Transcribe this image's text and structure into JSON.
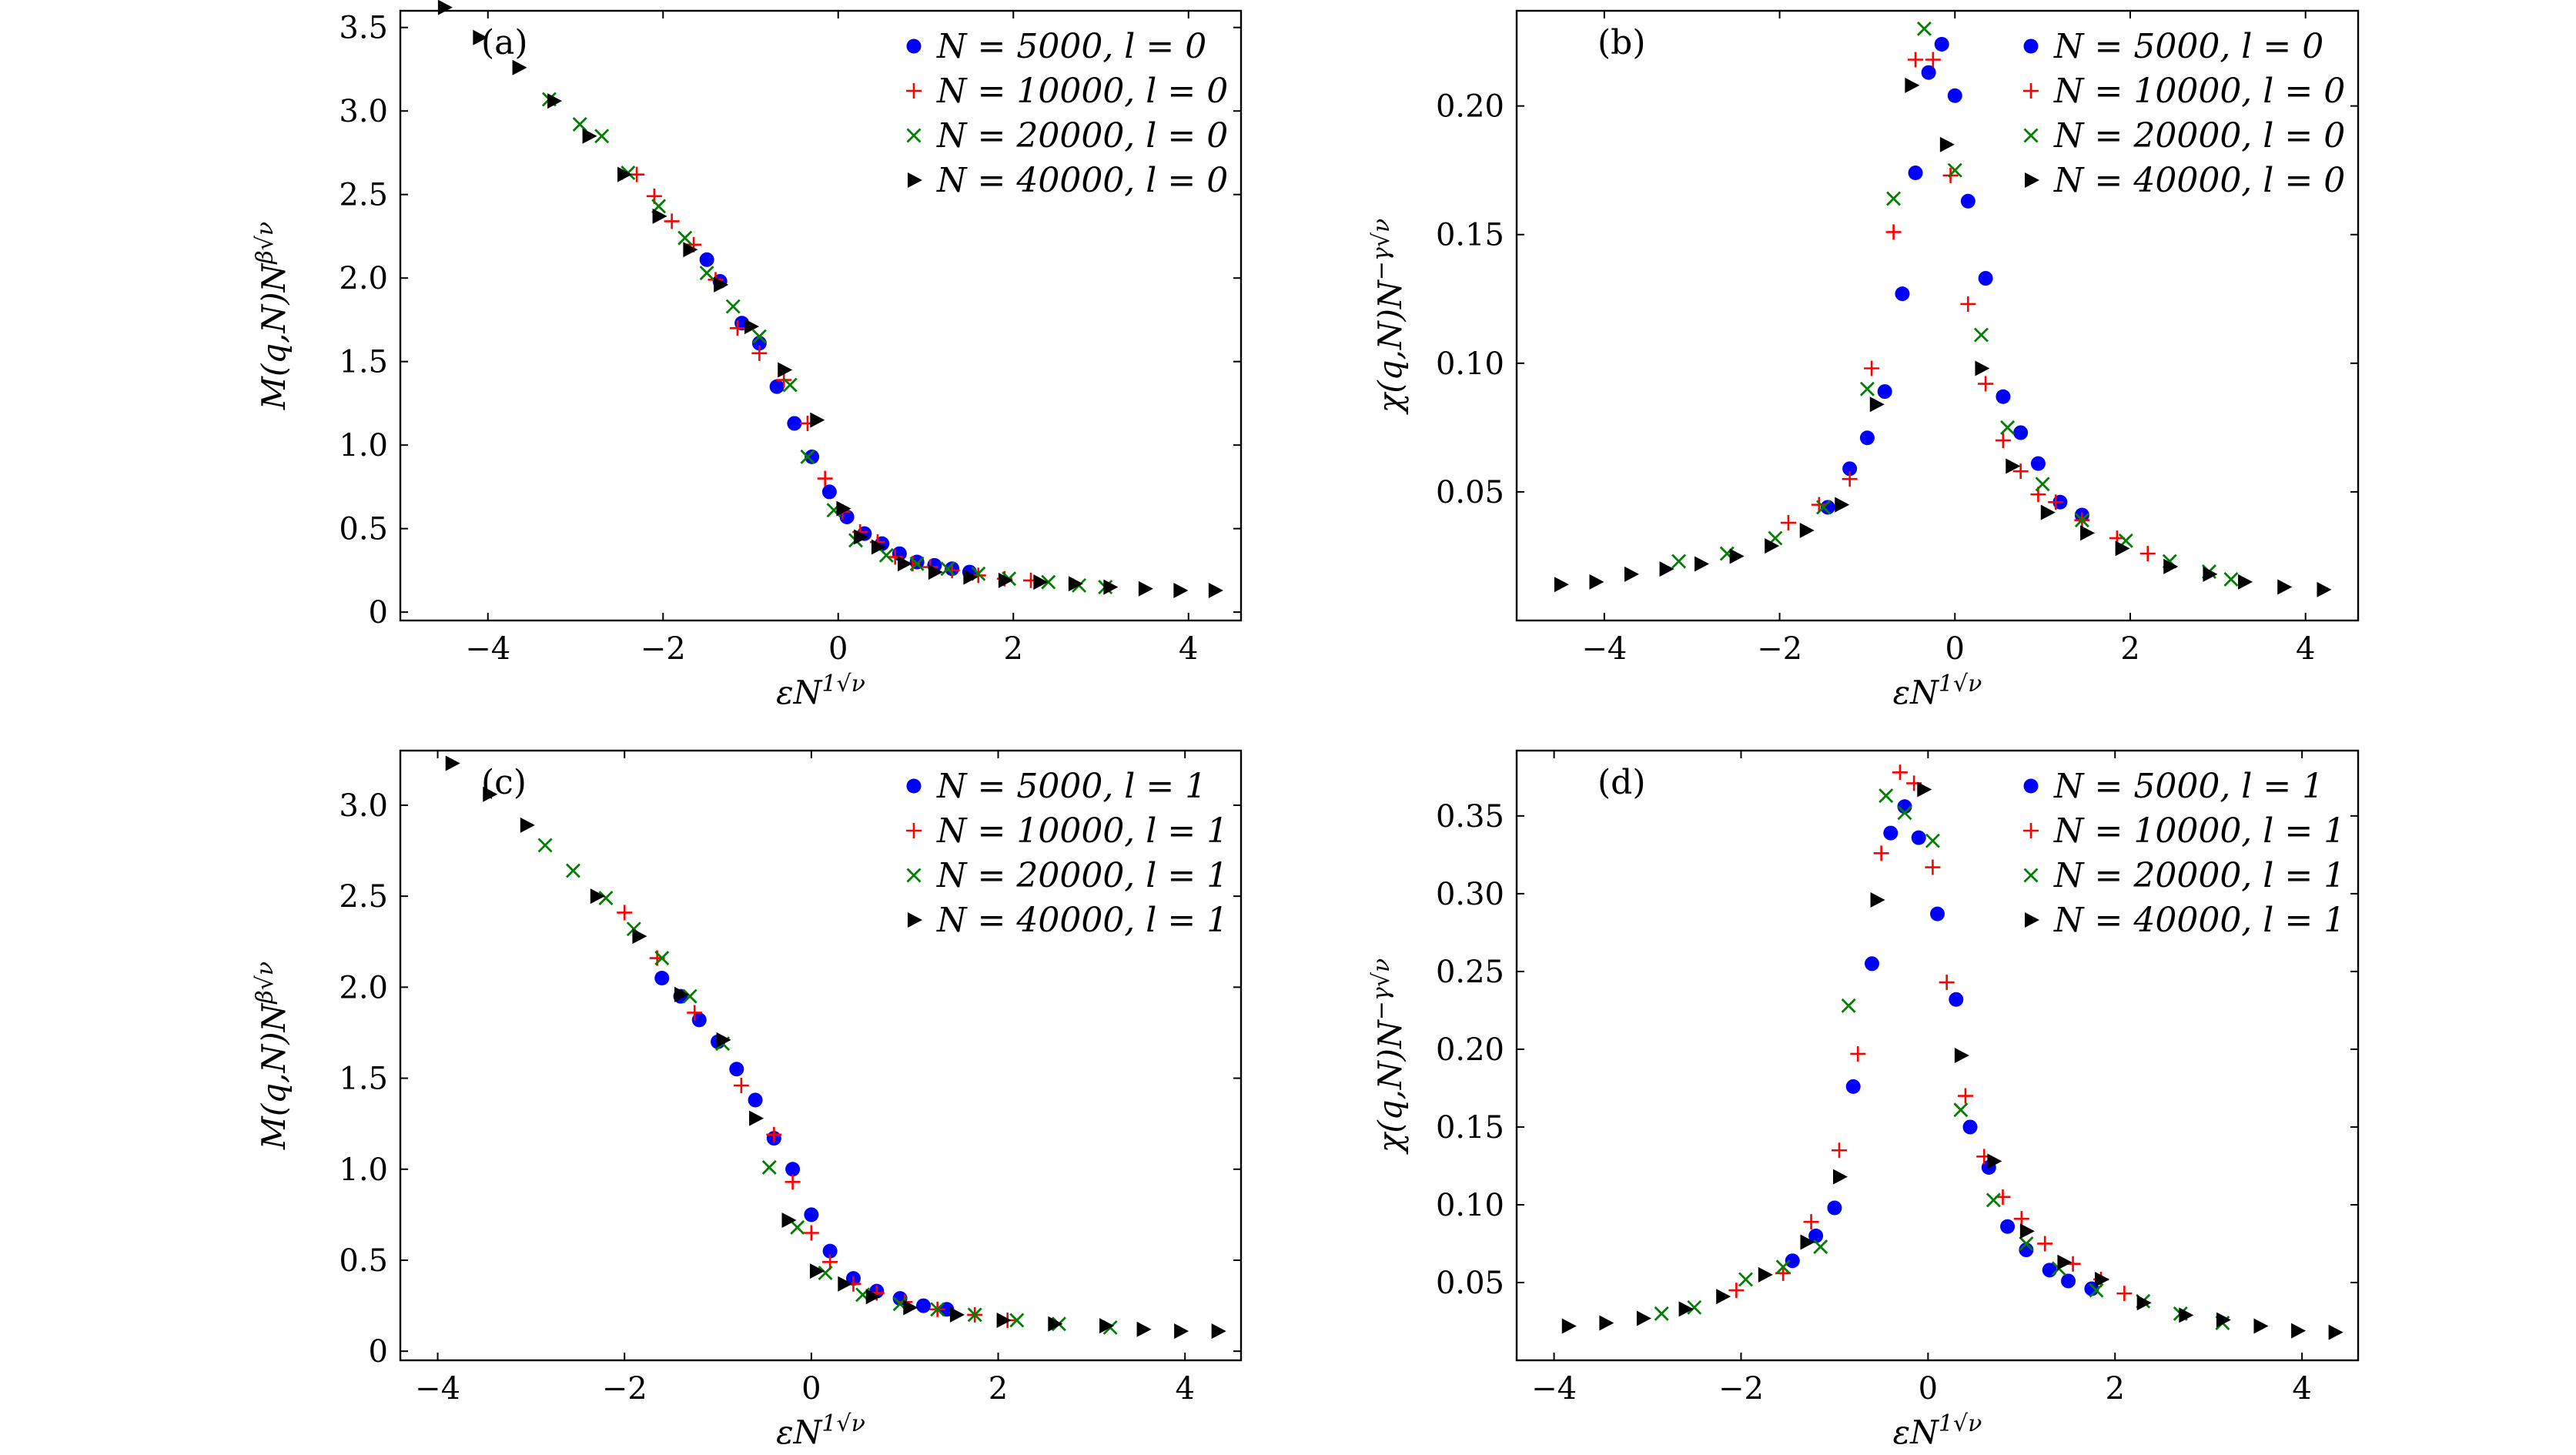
{
  "chart_data": [
    {
      "id": "a",
      "type": "scatter",
      "panel_label": "(a)",
      "xlabel": "εN^{1√ν}",
      "ylabel": "M(q,N)N^{β√ν}",
      "xlim": [
        -5.0,
        4.6
      ],
      "ylim": [
        -0.05,
        3.6
      ],
      "xticks": [
        -4,
        -2,
        0,
        2,
        4
      ],
      "xtick_labels": [
        "−4",
        "−2",
        "0",
        "2",
        "4"
      ],
      "yticks": [
        0,
        0.5,
        1.0,
        1.5,
        2.0,
        2.5,
        3.0,
        3.5
      ],
      "ytick_labels": [
        "0",
        "0.5",
        "1.0",
        "1.5",
        "2.0",
        "2.5",
        "3.0",
        "3.5"
      ],
      "legend_position": "top-right",
      "series": [
        {
          "name": "N = 5000,  l = 0",
          "marker": "circle",
          "color": "#0000ff",
          "x": [
            -1.5,
            -1.35,
            -1.1,
            -0.9,
            -0.7,
            -0.5,
            -0.3,
            -0.1,
            0.1,
            0.3,
            0.5,
            0.7,
            0.9,
            1.1,
            1.3,
            1.5
          ],
          "y": [
            2.11,
            1.98,
            1.73,
            1.61,
            1.35,
            1.13,
            0.93,
            0.72,
            0.57,
            0.47,
            0.41,
            0.35,
            0.3,
            0.28,
            0.26,
            0.24
          ]
        },
        {
          "name": "N = 10000,  l = 0",
          "marker": "plus",
          "color": "#ff0000",
          "x": [
            -2.3,
            -2.1,
            -1.9,
            -1.65,
            -1.4,
            -1.15,
            -0.9,
            -0.62,
            -0.35,
            -0.15,
            0.05,
            0.25,
            0.45,
            0.65,
            0.85,
            1.05,
            1.3,
            1.6,
            1.9,
            2.2
          ],
          "y": [
            2.62,
            2.49,
            2.34,
            2.2,
            1.99,
            1.7,
            1.55,
            1.39,
            1.13,
            0.8,
            0.6,
            0.48,
            0.42,
            0.33,
            0.29,
            0.27,
            0.25,
            0.22,
            0.2,
            0.19
          ]
        },
        {
          "name": "N = 20000,  l = 0",
          "marker": "x",
          "color": "#008000",
          "x": [
            -3.3,
            -2.95,
            -2.7,
            -2.4,
            -2.05,
            -1.75,
            -1.5,
            -1.2,
            -0.9,
            -0.55,
            -0.35,
            -0.05,
            0.2,
            0.55,
            0.9,
            1.25,
            1.6,
            1.95,
            2.4,
            2.75,
            3.05
          ],
          "y": [
            3.07,
            2.92,
            2.85,
            2.63,
            2.43,
            2.24,
            2.03,
            1.83,
            1.65,
            1.36,
            0.93,
            0.61,
            0.43,
            0.34,
            0.29,
            0.26,
            0.23,
            0.2,
            0.18,
            0.16,
            0.15
          ]
        },
        {
          "name": "N = 40000,  l = 0",
          "marker": "triangle-right",
          "color": "#000000",
          "x": [
            -4.5,
            -4.1,
            -3.65,
            -3.25,
            -2.85,
            -2.45,
            -2.05,
            -1.7,
            -1.35,
            -1.0,
            -0.62,
            -0.25,
            0.05,
            0.25,
            0.45,
            0.75,
            1.1,
            1.5,
            1.9,
            2.3,
            2.7,
            3.1,
            3.5,
            3.9,
            4.3
          ],
          "y": [
            3.62,
            3.44,
            3.26,
            3.06,
            2.85,
            2.62,
            2.37,
            2.17,
            1.96,
            1.71,
            1.45,
            1.15,
            0.62,
            0.45,
            0.39,
            0.29,
            0.24,
            0.21,
            0.19,
            0.18,
            0.17,
            0.15,
            0.14,
            0.13,
            0.13
          ]
        }
      ]
    },
    {
      "id": "b",
      "type": "scatter",
      "panel_label": "(b)",
      "xlabel": "εN^{1√ν}",
      "ylabel": "χ(q,N)N^{−γ√ν}",
      "xlim": [
        -5.0,
        4.6
      ],
      "ylim": [
        0.0,
        0.237
      ],
      "xticks": [
        -4,
        -2,
        0,
        2,
        4
      ],
      "xtick_labels": [
        "−4",
        "−2",
        "0",
        "2",
        "4"
      ],
      "yticks": [
        0.05,
        0.1,
        0.15,
        0.2
      ],
      "ytick_labels": [
        "0.05",
        "0.10",
        "0.15",
        "0.20"
      ],
      "legend_position": "top-right",
      "series": [
        {
          "name": "N = 5000,  l = 0",
          "marker": "circle",
          "color": "#0000ff",
          "x": [
            -1.45,
            -1.2,
            -1.0,
            -0.8,
            -0.6,
            -0.45,
            -0.3,
            -0.15,
            0.0,
            0.15,
            0.35,
            0.55,
            0.75,
            0.95,
            1.2,
            1.45
          ],
          "y": [
            0.044,
            0.059,
            0.071,
            0.089,
            0.127,
            0.174,
            0.213,
            0.224,
            0.204,
            0.163,
            0.133,
            0.087,
            0.073,
            0.061,
            0.046,
            0.041
          ]
        },
        {
          "name": "N = 10000,  l = 0",
          "marker": "plus",
          "color": "#ff0000",
          "x": [
            -1.9,
            -1.55,
            -1.2,
            -0.95,
            -0.7,
            -0.45,
            -0.25,
            -0.05,
            0.15,
            0.35,
            0.55,
            0.75,
            0.95,
            1.15,
            1.45,
            1.85,
            2.2
          ],
          "y": [
            0.038,
            0.045,
            0.055,
            0.098,
            0.151,
            0.218,
            0.218,
            0.173,
            0.123,
            0.092,
            0.07,
            0.058,
            0.049,
            0.046,
            0.039,
            0.032,
            0.026
          ]
        },
        {
          "name": "N = 20000,  l = 0",
          "marker": "x",
          "color": "#008000",
          "x": [
            -3.15,
            -2.6,
            -2.05,
            -1.5,
            -1.0,
            -0.7,
            -0.35,
            0.0,
            0.3,
            0.6,
            1.0,
            1.45,
            1.95,
            2.45,
            2.9,
            3.15
          ],
          "y": [
            0.023,
            0.026,
            0.032,
            0.044,
            0.09,
            0.164,
            0.23,
            0.175,
            0.111,
            0.075,
            0.053,
            0.039,
            0.031,
            0.023,
            0.019,
            0.016
          ]
        },
        {
          "name": "N = 40000,  l = 0",
          "marker": "triangle-right",
          "color": "#000000",
          "x": [
            -4.5,
            -4.1,
            -3.7,
            -3.3,
            -2.9,
            -2.5,
            -2.1,
            -1.7,
            -1.3,
            -0.9,
            -0.5,
            -0.1,
            0.3,
            0.65,
            1.05,
            1.5,
            1.9,
            2.45,
            2.9,
            3.3,
            3.75,
            4.2
          ],
          "y": [
            0.014,
            0.015,
            0.018,
            0.02,
            0.022,
            0.025,
            0.029,
            0.035,
            0.045,
            0.084,
            0.208,
            0.185,
            0.098,
            0.06,
            0.042,
            0.034,
            0.028,
            0.021,
            0.018,
            0.015,
            0.013,
            0.012
          ]
        }
      ]
    },
    {
      "id": "c",
      "type": "scatter",
      "panel_label": "(c)",
      "xlabel": "εN^{1√ν}",
      "ylabel": "M(q,N)N^{β√ν}",
      "xlim": [
        -4.4,
        4.6
      ],
      "ylim": [
        -0.05,
        3.3
      ],
      "xticks": [
        -4,
        -2,
        0,
        2,
        4
      ],
      "xtick_labels": [
        "−4",
        "−2",
        "0",
        "2",
        "4"
      ],
      "yticks": [
        0,
        0.5,
        1.0,
        1.5,
        2.0,
        2.5,
        3.0
      ],
      "ytick_labels": [
        "0",
        "0.5",
        "1.0",
        "1.5",
        "2.0",
        "2.5",
        "3.0"
      ],
      "legend_position": "top-right",
      "series": [
        {
          "name": "N = 5000,  l = 1",
          "marker": "circle",
          "color": "#0000ff",
          "x": [
            -1.6,
            -1.4,
            -1.2,
            -1.0,
            -0.8,
            -0.6,
            -0.4,
            -0.2,
            0.0,
            0.2,
            0.45,
            0.7,
            0.95,
            1.2,
            1.45
          ],
          "y": [
            2.05,
            1.95,
            1.82,
            1.7,
            1.55,
            1.38,
            1.17,
            1.0,
            0.75,
            0.55,
            0.4,
            0.33,
            0.29,
            0.25,
            0.23
          ]
        },
        {
          "name": "N = 10000,  l = 1",
          "marker": "plus",
          "color": "#ff0000",
          "x": [
            -2.0,
            -1.65,
            -1.25,
            -0.75,
            -0.4,
            -0.2,
            0.0,
            0.2,
            0.45,
            0.7,
            1.0,
            1.35,
            1.75,
            2.1
          ],
          "y": [
            2.41,
            2.16,
            1.86,
            1.46,
            1.19,
            0.93,
            0.65,
            0.49,
            0.37,
            0.32,
            0.27,
            0.23,
            0.2,
            0.17
          ]
        },
        {
          "name": "N = 20000,  l = 1",
          "marker": "x",
          "color": "#008000",
          "x": [
            -2.85,
            -2.55,
            -2.2,
            -1.9,
            -1.6,
            -1.3,
            -0.95,
            -0.45,
            -0.15,
            0.15,
            0.55,
            0.95,
            1.35,
            1.75,
            2.2,
            2.65,
            3.2
          ],
          "y": [
            2.78,
            2.64,
            2.49,
            2.32,
            2.16,
            1.95,
            1.69,
            1.01,
            0.68,
            0.43,
            0.31,
            0.26,
            0.23,
            0.2,
            0.17,
            0.15,
            0.13
          ]
        },
        {
          "name": "N = 40000,  l = 1",
          "marker": "triangle-right",
          "color": "#000000",
          "x": [
            -3.85,
            -3.45,
            -3.05,
            -2.3,
            -1.85,
            -1.4,
            -0.95,
            -0.6,
            -0.25,
            0.05,
            0.35,
            0.65,
            1.05,
            1.55,
            2.05,
            2.6,
            3.15,
            3.55,
            3.95,
            4.35
          ],
          "y": [
            3.23,
            3.06,
            2.89,
            2.5,
            2.28,
            1.96,
            1.71,
            1.28,
            0.72,
            0.44,
            0.37,
            0.3,
            0.24,
            0.2,
            0.17,
            0.15,
            0.14,
            0.12,
            0.11,
            0.11
          ]
        }
      ]
    },
    {
      "id": "d",
      "type": "scatter",
      "panel_label": "(d)",
      "xlabel": "εN^{1√ν}",
      "ylabel": "χ(q,N)N^{−γ√ν}",
      "xlim": [
        -4.4,
        4.6
      ],
      "ylim": [
        0.0,
        0.392
      ],
      "xticks": [
        -4,
        -2,
        0,
        2,
        4
      ],
      "xtick_labels": [
        "−4",
        "−2",
        "0",
        "2",
        "4"
      ],
      "yticks": [
        0.05,
        0.1,
        0.15,
        0.2,
        0.25,
        0.3,
        0.35
      ],
      "ytick_labels": [
        "0.05",
        "0.10",
        "0.15",
        "0.20",
        "0.25",
        "0.30",
        "0.35"
      ],
      "legend_position": "top-right",
      "series": [
        {
          "name": "N = 5000,  l = 1",
          "marker": "circle",
          "color": "#0000ff",
          "x": [
            -1.45,
            -1.2,
            -1.0,
            -0.8,
            -0.6,
            -0.4,
            -0.25,
            -0.1,
            0.1,
            0.3,
            0.45,
            0.65,
            0.85,
            1.05,
            1.3,
            1.5,
            1.75
          ],
          "y": [
            0.064,
            0.08,
            0.098,
            0.176,
            0.255,
            0.339,
            0.356,
            0.336,
            0.287,
            0.232,
            0.15,
            0.124,
            0.086,
            0.071,
            0.058,
            0.051,
            0.046
          ]
        },
        {
          "name": "N = 10000,  l = 1",
          "marker": "plus",
          "color": "#ff0000",
          "x": [
            -2.05,
            -1.55,
            -1.25,
            -0.95,
            -0.75,
            -0.5,
            -0.3,
            -0.15,
            0.05,
            0.2,
            0.4,
            0.6,
            0.8,
            1.0,
            1.25,
            1.55,
            1.85,
            2.1
          ],
          "y": [
            0.045,
            0.056,
            0.089,
            0.135,
            0.197,
            0.326,
            0.378,
            0.371,
            0.317,
            0.243,
            0.17,
            0.131,
            0.105,
            0.091,
            0.075,
            0.062,
            0.052,
            0.043
          ]
        },
        {
          "name": "N = 20000,  l = 1",
          "marker": "x",
          "color": "#008000",
          "x": [
            -2.85,
            -2.5,
            -1.95,
            -1.55,
            -1.15,
            -0.85,
            -0.45,
            -0.25,
            0.05,
            0.35,
            0.7,
            1.05,
            1.4,
            1.8,
            2.3,
            2.7,
            3.15
          ],
          "y": [
            0.03,
            0.034,
            0.052,
            0.06,
            0.073,
            0.228,
            0.363,
            0.352,
            0.334,
            0.161,
            0.103,
            0.075,
            0.059,
            0.045,
            0.038,
            0.03,
            0.024
          ]
        },
        {
          "name": "N = 40000,  l = 1",
          "marker": "triangle-right",
          "color": "#000000",
          "x": [
            -3.85,
            -3.45,
            -3.05,
            -2.6,
            -2.2,
            -1.75,
            -1.3,
            -0.95,
            -0.55,
            -0.05,
            0.35,
            0.7,
            1.05,
            1.45,
            1.85,
            2.3,
            2.75,
            3.15,
            3.55,
            3.95,
            4.35
          ],
          "y": [
            0.022,
            0.024,
            0.027,
            0.033,
            0.041,
            0.055,
            0.076,
            0.118,
            0.296,
            0.367,
            0.196,
            0.128,
            0.083,
            0.063,
            0.052,
            0.037,
            0.029,
            0.026,
            0.022,
            0.019,
            0.018
          ]
        }
      ]
    }
  ]
}
